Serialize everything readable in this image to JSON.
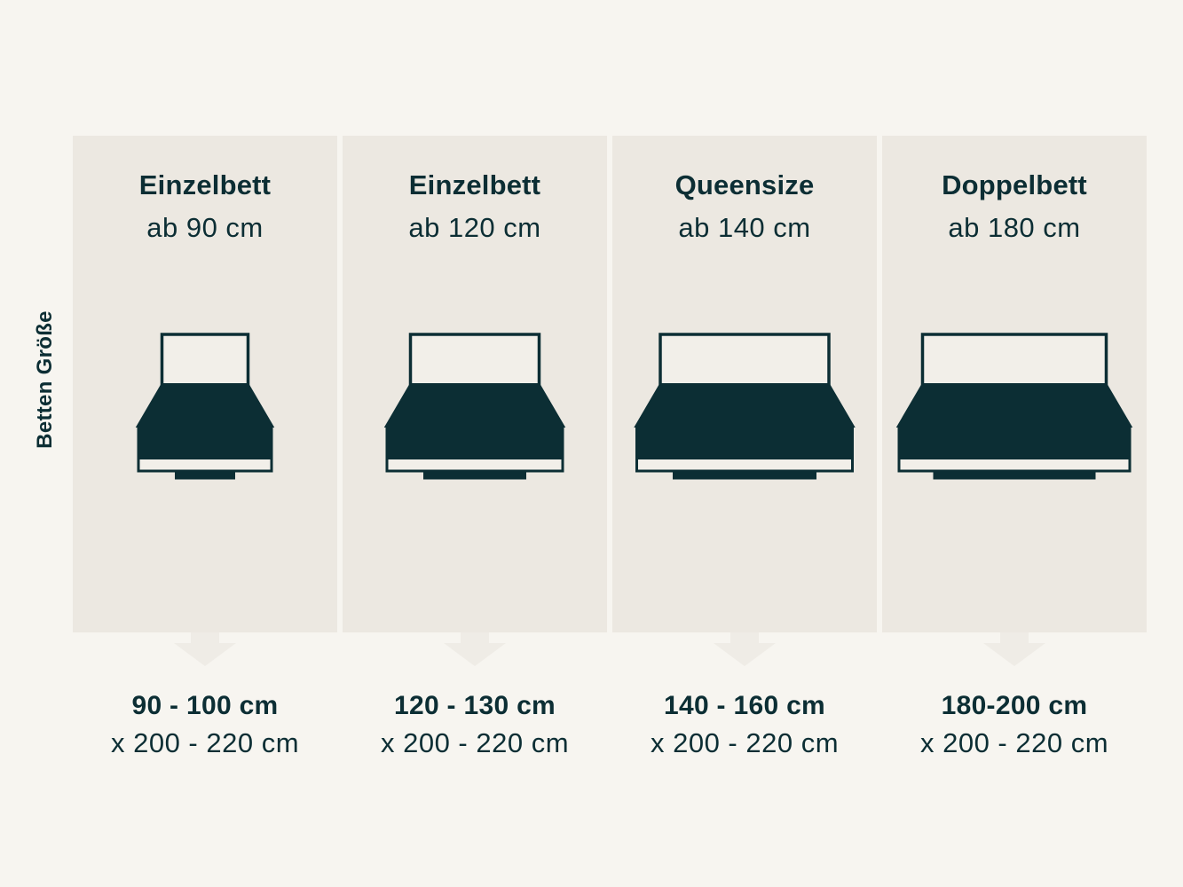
{
  "side_label": "Betten Größe",
  "colors": {
    "background": "#f7f5f0",
    "panel": "#ece8e1",
    "arrow": "#efece6",
    "light_fill": "#f2efe9",
    "dark": "#0c2e34"
  },
  "columns": [
    {
      "title": "Einzelbett",
      "subtitle": "ab 90 cm",
      "width_range": "90 - 100 cm",
      "length_range": "x 200 - 220 cm",
      "bed": {
        "headboard_w": 97,
        "foot_w": 68
      }
    },
    {
      "title": "Einzelbett",
      "subtitle": "ab 120 cm",
      "width_range": "120 - 130 cm",
      "length_range": "x 200 - 220 cm",
      "bed": {
        "headboard_w": 145,
        "foot_w": 116
      }
    },
    {
      "title": "Queensize",
      "subtitle": "ab 140 cm",
      "width_range": "140 - 160 cm",
      "length_range": "x 200 - 220 cm",
      "bed": {
        "headboard_w": 190,
        "foot_w": 162
      }
    },
    {
      "title": "Doppelbett",
      "subtitle": "ab 180 cm",
      "width_range": "180-200 cm",
      "length_range": "x 200 - 220 cm",
      "bed": {
        "headboard_w": 207,
        "foot_w": 183
      }
    }
  ]
}
